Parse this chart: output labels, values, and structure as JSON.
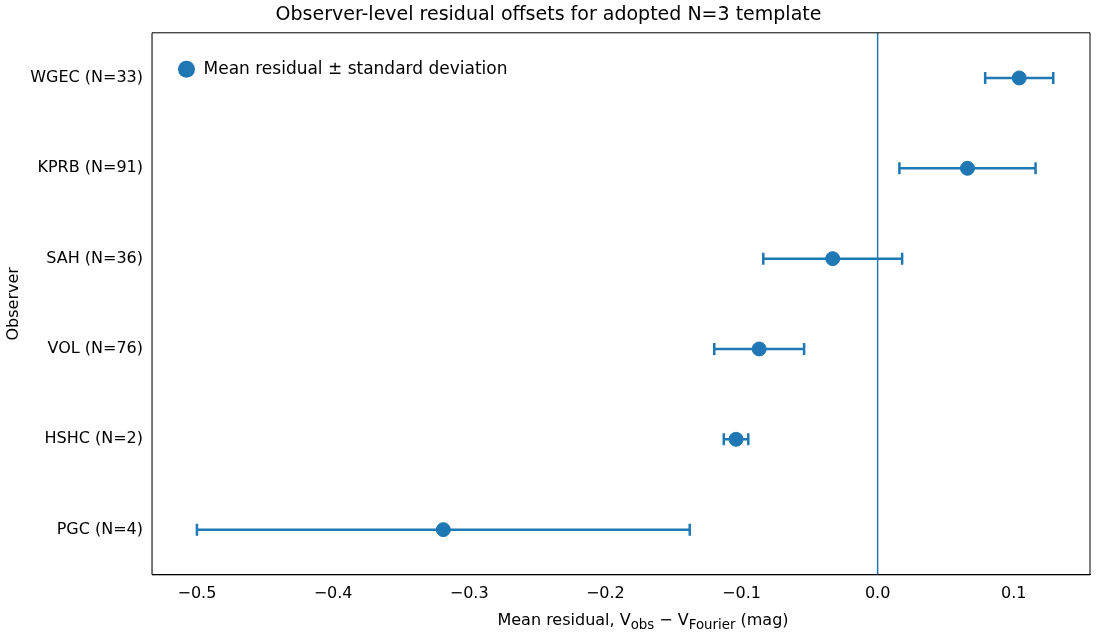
{
  "chart_data": {
    "type": "scatter",
    "orientation": "horizontal",
    "title": "Observer-level residual offsets for adopted N=3 template",
    "xlabel": "Mean residual, V$_{obs}$ − V$_{Fourier}$ (mag)",
    "ylabel": "Observer",
    "categories": [
      "WGEC (N=33)",
      "KPRB (N=91)",
      "SAH (N=36)",
      "VOL (N=76)",
      "HSHC (N=2)",
      "PGC (N=4)"
    ],
    "series": [
      {
        "name": "Mean residual ± standard deviation",
        "color": "#1f77b4",
        "values": [
          0.104,
          0.066,
          -0.033,
          -0.087,
          -0.104,
          -0.319
        ],
        "errors": [
          0.025,
          0.05,
          0.051,
          0.033,
          0.009,
          0.181
        ]
      }
    ],
    "xlim": [
      -0.533,
      0.156
    ],
    "xticks": [
      {
        "value": -0.5,
        "label": "−0.5"
      },
      {
        "value": -0.4,
        "label": "−0.4"
      },
      {
        "value": -0.3,
        "label": "−0.3"
      },
      {
        "value": -0.2,
        "label": "−0.2"
      },
      {
        "value": -0.1,
        "label": "−0.1"
      },
      {
        "value": 0,
        "label": "0.0"
      },
      0.1
    ],
    "ref_lines": [
      {
        "axis": "x",
        "value": 0,
        "color": "#1f77b4"
      }
    ],
    "legend": "top left",
    "marker": "circle",
    "grid": false
  }
}
